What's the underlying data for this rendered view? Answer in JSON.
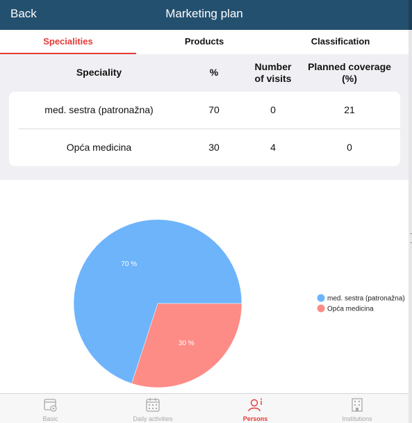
{
  "nav": {
    "back_label": "Back",
    "title": "Marketing plan"
  },
  "tabs": [
    {
      "label": "Specialities",
      "active": true
    },
    {
      "label": "Products",
      "active": false
    },
    {
      "label": "Classification",
      "active": false
    }
  ],
  "table": {
    "headers": {
      "speciality": "Speciality",
      "percent": "%",
      "visits_line1": "Number",
      "visits_line2": "of visits",
      "coverage_line1": "Planned coverage",
      "coverage_line2": "(%)"
    },
    "rows": [
      {
        "speciality": "med. sestra (patronažna)",
        "percent": "70",
        "visits": "0",
        "coverage": "21"
      },
      {
        "speciality": "Opća medicina",
        "percent": "30",
        "visits": "4",
        "coverage": "0"
      }
    ]
  },
  "chart_data": {
    "type": "pie",
    "categories": [
      "med. sestra (patronažna)",
      "Opća medicina"
    ],
    "values": [
      70,
      30
    ],
    "slice_labels": [
      "70 %",
      "30 %"
    ],
    "colors": [
      "#6db4fb",
      "#fd8c86"
    ],
    "legend_position": "right"
  },
  "colors": {
    "accent": "#e53935",
    "navbar": "#24506f"
  },
  "tabbar": [
    {
      "label": "Basic",
      "icon": "calendar-settings-icon",
      "active": false
    },
    {
      "label": "Daily activities",
      "icon": "calendar-grid-icon",
      "active": false
    },
    {
      "label": "Persons",
      "icon": "person-info-icon",
      "active": true
    },
    {
      "label": "Institutions",
      "icon": "building-icon",
      "active": false
    }
  ]
}
